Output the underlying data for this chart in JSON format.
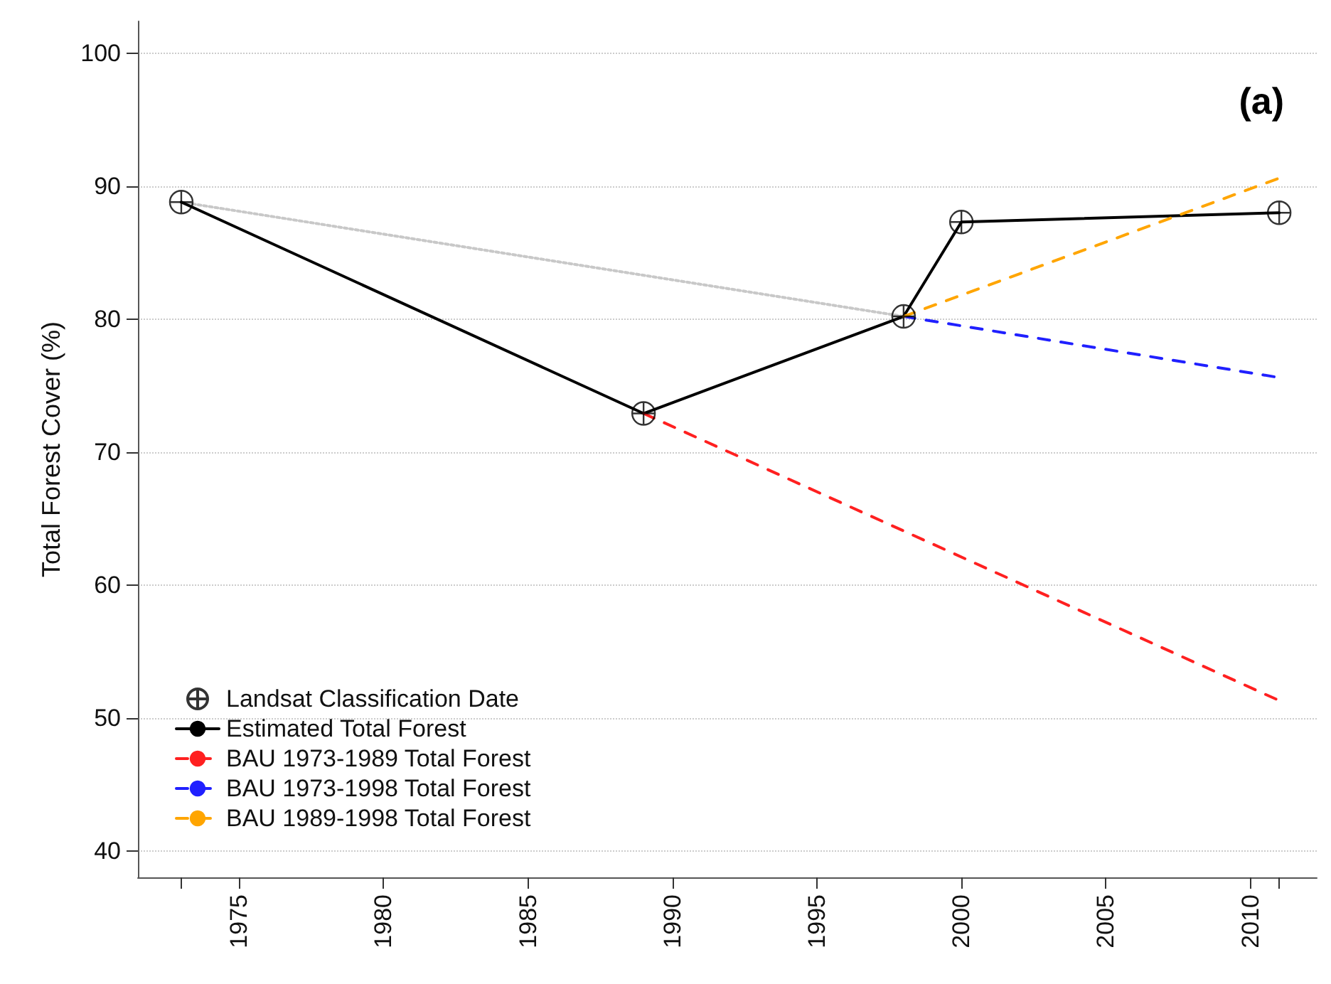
{
  "chart_data": {
    "type": "line",
    "ylabel": "Total Forest Cover (%)",
    "annotations": [
      "(a)"
    ],
    "xlim": [
      1971.5,
      2012.3
    ],
    "ylim": [
      38,
      102.4
    ],
    "xticks": [
      {
        "value": 1973,
        "label": null
      },
      1975,
      1980,
      1985,
      1990,
      1995,
      2000,
      2005,
      2010,
      {
        "value": 2011,
        "label": null
      }
    ],
    "yticks": [
      40,
      50,
      60,
      70,
      80,
      90,
      100
    ],
    "grid": "y",
    "legend": "bottom left",
    "series": [
      {
        "color": "#c8c8c8",
        "line_style": "dotted",
        "marker": "none",
        "x": [
          1973,
          1998
        ],
        "values": [
          88.8,
          80.2
        ]
      },
      {
        "type": "scatter",
        "name": "Landsat Classification Date",
        "color": "#000000",
        "marker": "cross",
        "x": [
          1973,
          1989,
          1998,
          2000,
          2011
        ],
        "values": [
          88.8,
          72.9,
          80.2,
          87.3,
          88.0
        ]
      },
      {
        "name": "Estimated Total Forest",
        "color": "#000000",
        "line_style": "solid",
        "marker": "none",
        "x": [
          1973,
          1989,
          1998,
          2000,
          2011
        ],
        "values": [
          88.8,
          72.9,
          80.2,
          87.3,
          88.0
        ]
      },
      {
        "name": "BAU 1973-1989 Total Forest",
        "color": "#ff2020",
        "line_style": "dashed",
        "marker": "none",
        "x": [
          1989,
          2011
        ],
        "values": [
          72.9,
          51.3
        ]
      },
      {
        "name": "BAU 1973-1998 Total Forest",
        "color": "#2020ff",
        "line_style": "dashed",
        "marker": "none",
        "x": [
          1998,
          2011
        ],
        "values": [
          80.2,
          75.6
        ]
      },
      {
        "name": "BAU 1989-1998 Total Forest",
        "color": "#ffa500",
        "line_style": "dashed",
        "marker": "none",
        "x": [
          1998,
          2011
        ],
        "values": [
          80.2,
          90.6
        ]
      }
    ]
  }
}
